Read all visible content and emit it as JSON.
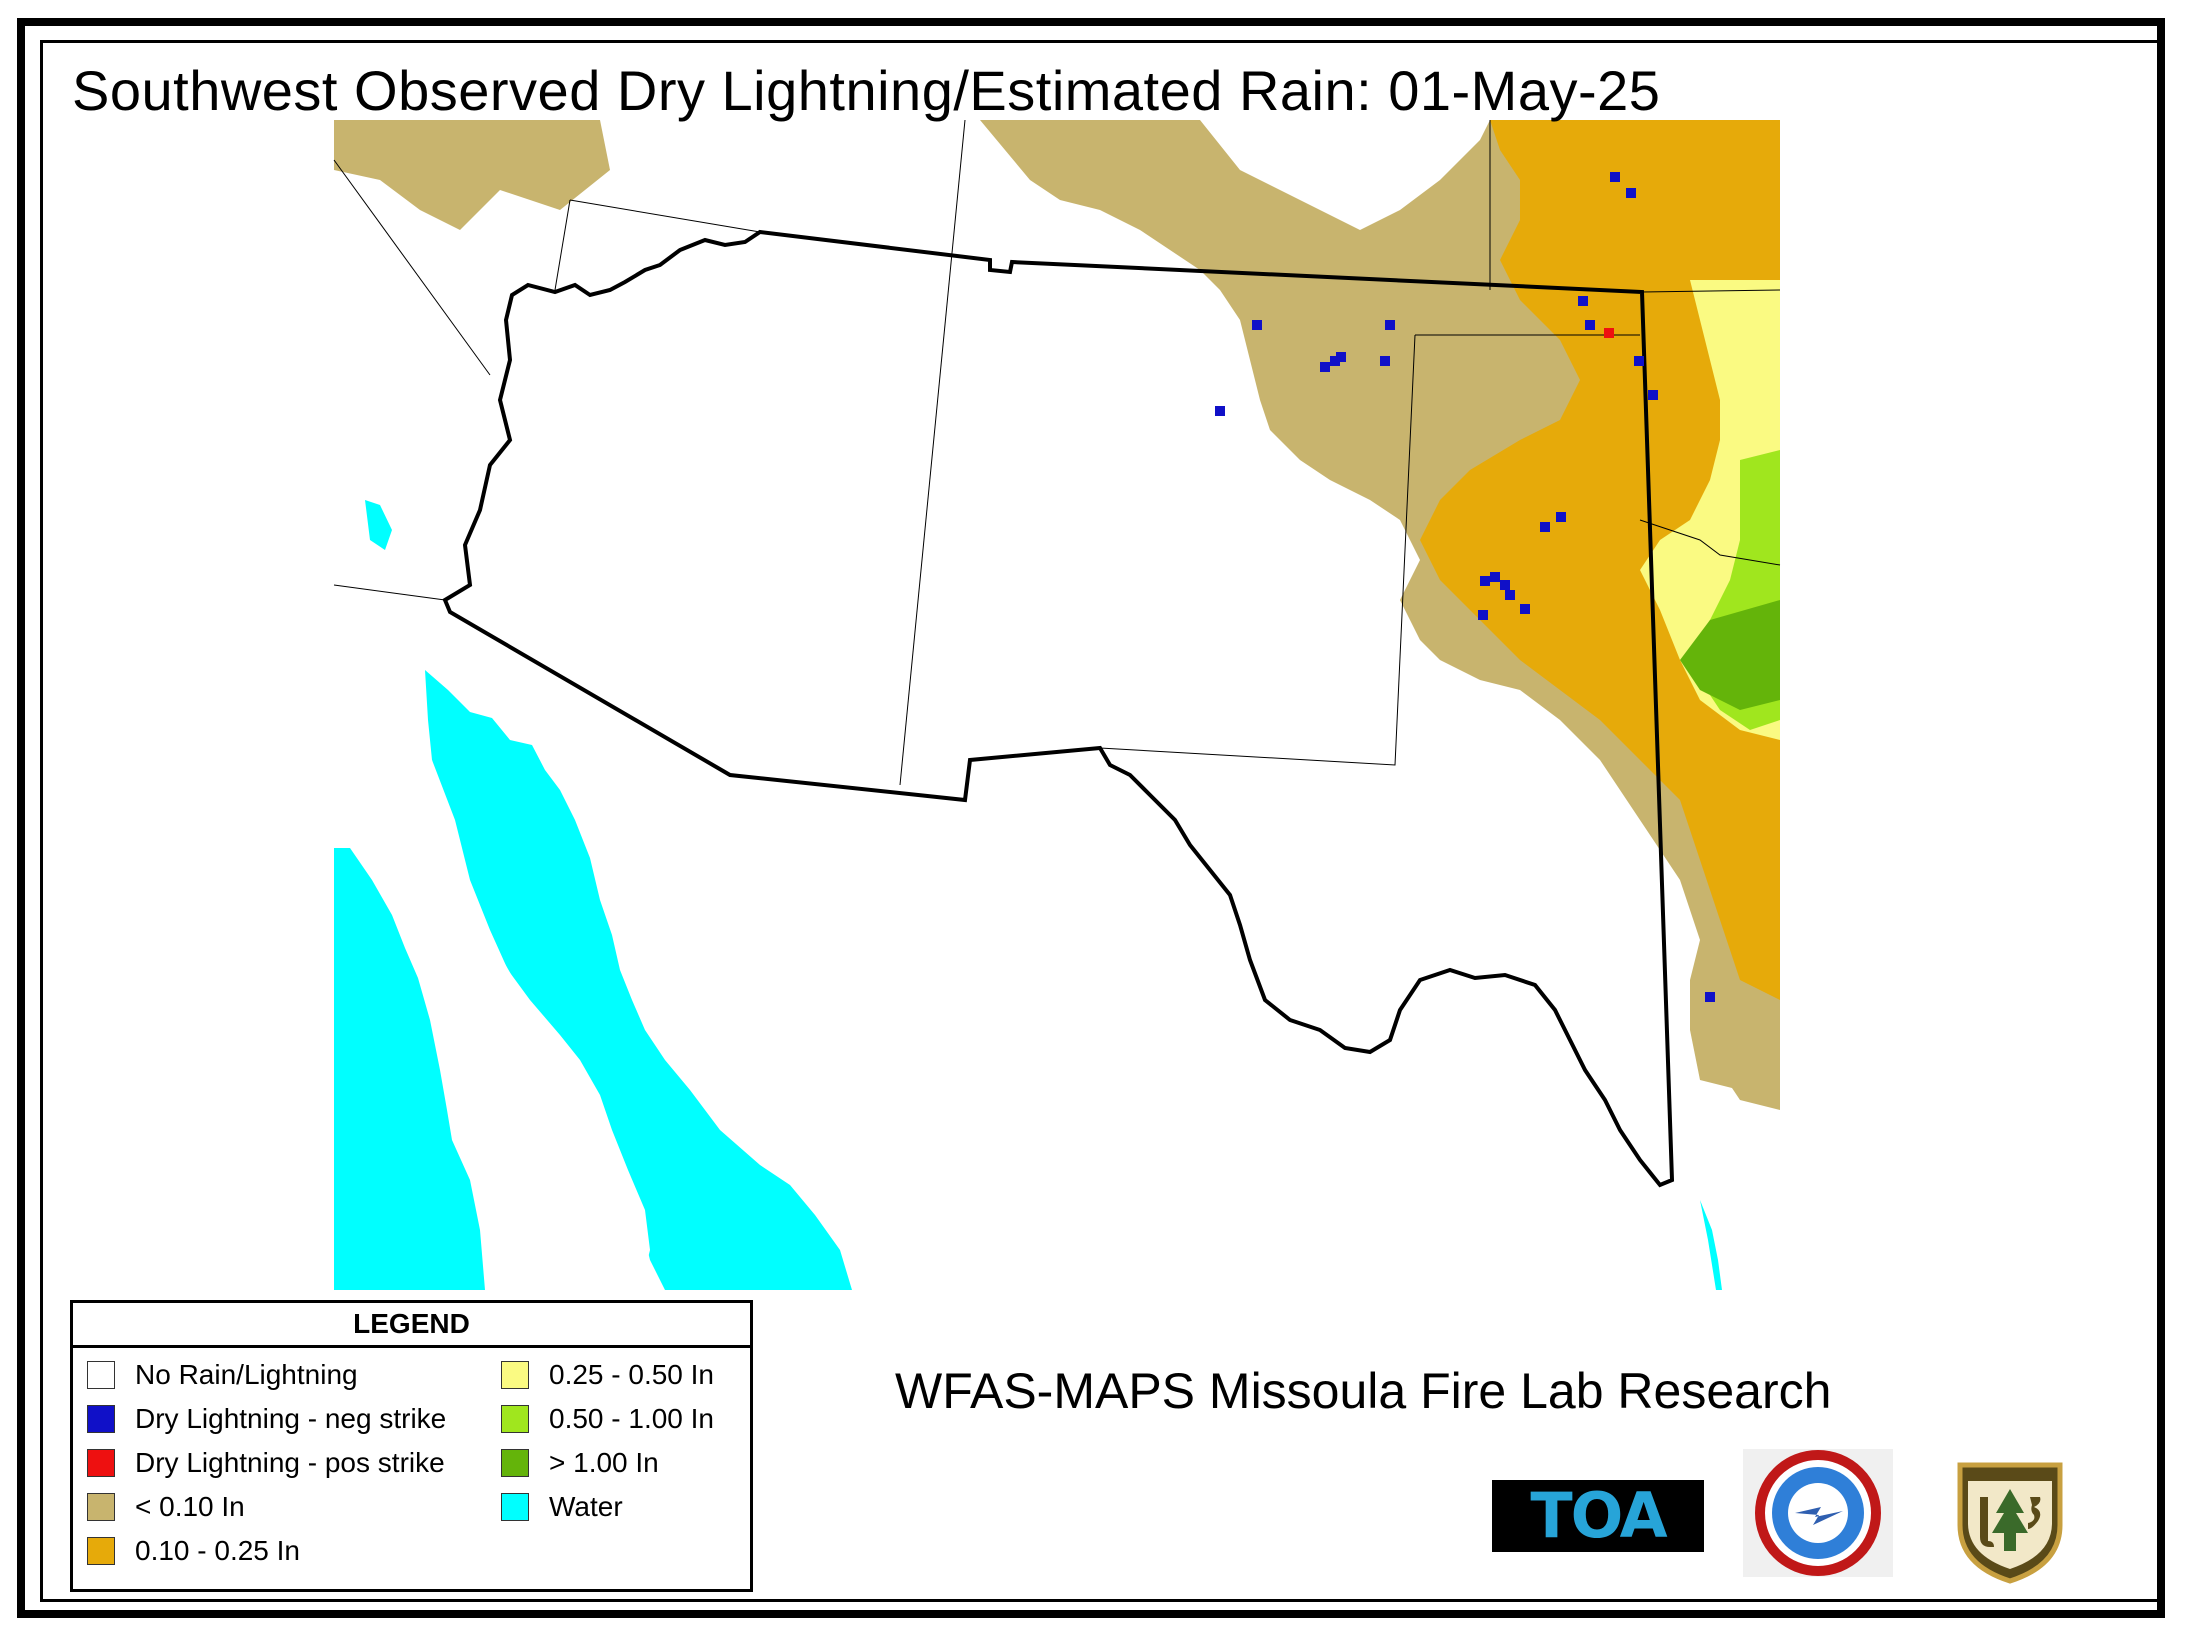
{
  "title": "Southwest Observed Dry Lightning/Estimated Rain: 01-May-25",
  "credit": "WFAS-MAPS Missoula Fire Lab Research",
  "legend": {
    "heading": "LEGEND",
    "items": [
      {
        "label": "No Rain/Lightning",
        "color": "#ffffff"
      },
      {
        "label": "Dry Lightning - neg strike",
        "color": "#1010c8"
      },
      {
        "label": "Dry Lightning - pos strike",
        "color": "#ee1010"
      },
      {
        "label": "< 0.10 In",
        "color": "#c8b46e"
      },
      {
        "label": "0.10 - 0.25 In",
        "color": "#e6aa0a"
      },
      {
        "label": "0.25 - 0.50 In",
        "color": "#fafa82"
      },
      {
        "label": "0.50 - 1.00 In",
        "color": "#a0e61e"
      },
      {
        "label": "> 1.00 In",
        "color": "#64b40a"
      },
      {
        "label": "Water",
        "color": "#00ffff"
      }
    ]
  },
  "logos": {
    "toa": "TOA",
    "nws_icon": "national-weather-service-logo",
    "usfs_icon": "forest-service-shield-logo"
  }
}
